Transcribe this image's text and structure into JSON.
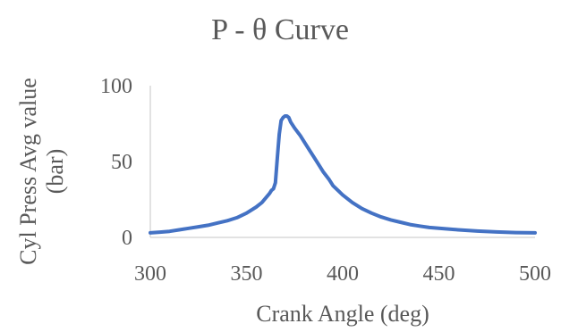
{
  "chart_data": {
    "type": "line",
    "title": "P - θ Curve",
    "xlabel": "Crank Angle (deg)",
    "ylabel_lines": [
      "Cyl Press Avg value",
      "(bar)"
    ],
    "xlim": [
      300,
      500
    ],
    "ylim": [
      0,
      100
    ],
    "x_ticks": [
      300,
      350,
      400,
      450,
      500
    ],
    "y_ticks": [
      0,
      50,
      100
    ],
    "grid": false,
    "line_color": "#4472C4",
    "series": [
      {
        "x": [
          300,
          305,
          310,
          315,
          320,
          325,
          330,
          335,
          340,
          345,
          350,
          355,
          358,
          360,
          362,
          363,
          364,
          365,
          366,
          367,
          368,
          369,
          370,
          371,
          372,
          373,
          375,
          378,
          380,
          383,
          385,
          388,
          390,
          393,
          395,
          400,
          405,
          410,
          415,
          420,
          425,
          430,
          435,
          440,
          445,
          450,
          455,
          460,
          470,
          480,
          490,
          500
        ],
        "y": [
          3,
          3.5,
          4,
          5,
          6,
          7,
          8,
          9.5,
          11,
          13,
          16,
          20,
          23,
          26,
          29,
          31,
          32,
          36,
          52,
          68,
          77,
          79,
          80,
          80,
          79,
          76,
          72,
          67,
          63,
          57,
          53,
          47,
          43,
          38,
          34,
          28,
          23,
          19,
          16,
          13.5,
          11.5,
          10,
          8.5,
          7.5,
          6.5,
          6,
          5.5,
          5,
          4.2,
          3.6,
          3.2,
          3
        ]
      }
    ]
  }
}
